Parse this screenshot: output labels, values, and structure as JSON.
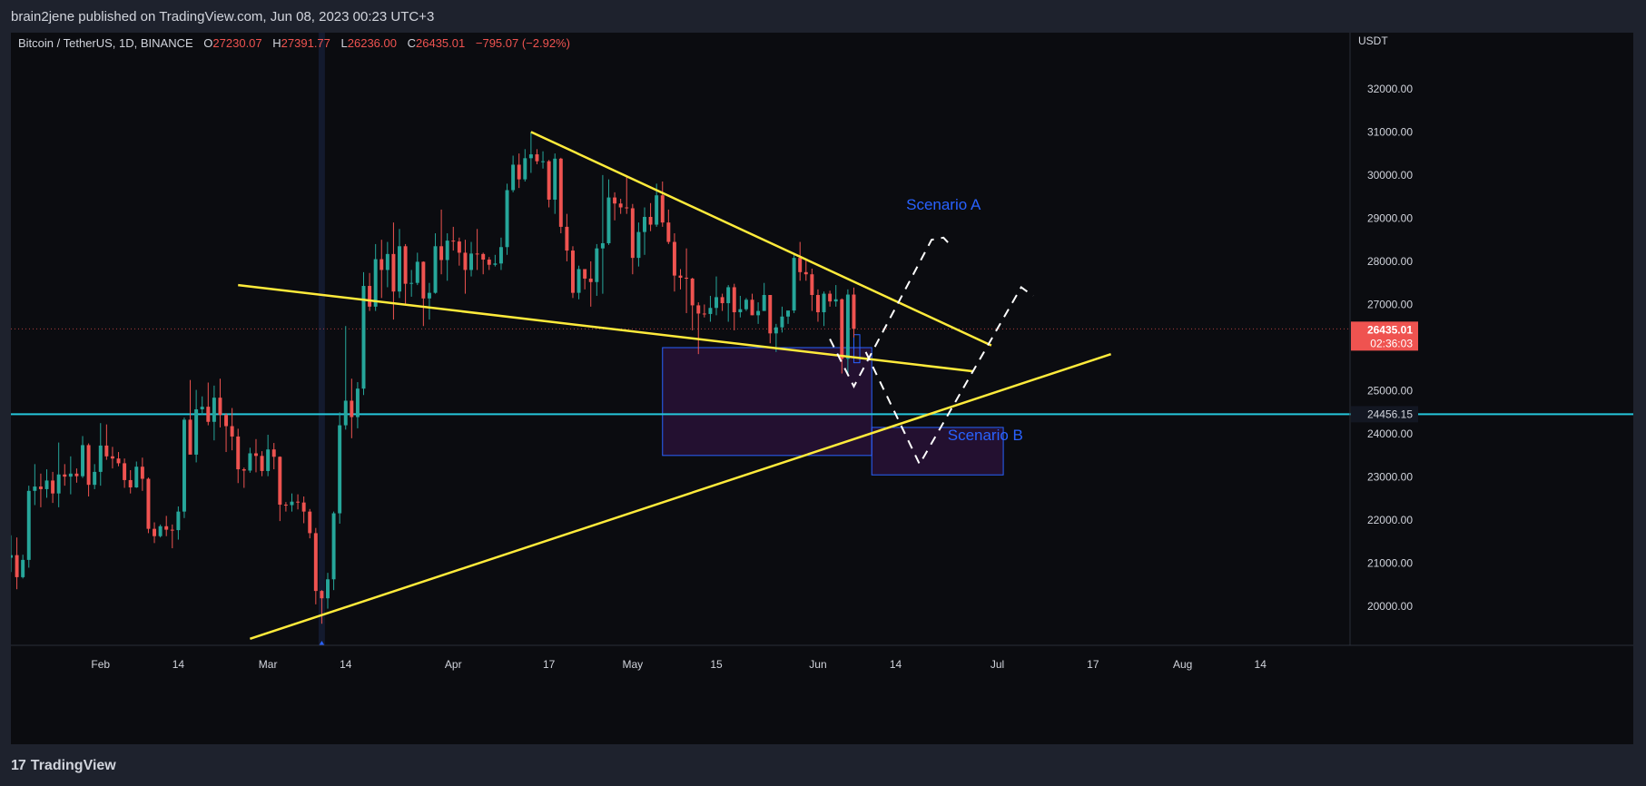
{
  "header": {
    "published_by": "brain2jene published on TradingView.com, Jun 08, 2023 00:23 UTC+3"
  },
  "footer": {
    "logo_mark": "17",
    "logo_text": "TradingView"
  },
  "colors": {
    "up": "#26a69a",
    "down": "#ef5350",
    "trendline": "#ffeb3b",
    "support_line": "#26c6da",
    "price_badge": "#ef5350",
    "scenario_text": "#2962ff"
  },
  "chart_data": {
    "type": "candlestick",
    "symbol_line": {
      "pair": "Bitcoin / TetherUS, 1D, BINANCE",
      "o_label": "O",
      "o": "27230.07",
      "h_label": "H",
      "h": "27391.77",
      "l_label": "L",
      "l": "26236.00",
      "c_label": "C",
      "c": "26435.01",
      "change": "−795.07 (−2.92%)"
    },
    "currency": "USDT",
    "y_ticks": [
      "32000.00",
      "31000.00",
      "30000.00",
      "29000.00",
      "28000.00",
      "27000.00",
      "25000.00",
      "24000.00",
      "23000.00",
      "22000.00",
      "21000.00",
      "20000.00"
    ],
    "y_range": [
      19100,
      33300
    ],
    "x_ticks": [
      {
        "date": "2023-02-01",
        "label": "Feb"
      },
      {
        "date": "2023-02-14",
        "label": "14"
      },
      {
        "date": "2023-03-01",
        "label": "Mar"
      },
      {
        "date": "2023-03-14",
        "label": "14"
      },
      {
        "date": "2023-04-01",
        "label": "Apr"
      },
      {
        "date": "2023-04-17",
        "label": "17"
      },
      {
        "date": "2023-05-01",
        "label": "May"
      },
      {
        "date": "2023-05-15",
        "label": "15"
      },
      {
        "date": "2023-06-01",
        "label": "Jun"
      },
      {
        "date": "2023-06-14",
        "label": "14"
      },
      {
        "date": "2023-07-01",
        "label": "Jul"
      },
      {
        "date": "2023-07-17",
        "label": "17"
      },
      {
        "date": "2023-08-01",
        "label": "Aug"
      },
      {
        "date": "2023-08-14",
        "label": "14"
      }
    ],
    "x_range": [
      "2023-01-17",
      "2023-08-29"
    ],
    "last_price": {
      "value": 26435.01,
      "label": "26435.01",
      "countdown": "02:36:03"
    },
    "support_level": {
      "value": 24456.15,
      "label": "24456.15"
    },
    "highlighted_date": "2023-03-10",
    "candles": [
      [
        "2023-01-17",
        21130,
        21650,
        20800,
        21190
      ],
      [
        "2023-01-18",
        21190,
        21600,
        20400,
        20680
      ],
      [
        "2023-01-19",
        20680,
        21200,
        20650,
        21080
      ],
      [
        "2023-01-20",
        21080,
        22800,
        20900,
        22680
      ],
      [
        "2023-01-21",
        22680,
        23300,
        22350,
        22780
      ],
      [
        "2023-01-22",
        22780,
        23080,
        22300,
        22720
      ],
      [
        "2023-01-23",
        22720,
        23180,
        22520,
        22920
      ],
      [
        "2023-01-24",
        22920,
        23120,
        22400,
        22620
      ],
      [
        "2023-01-25",
        22620,
        23800,
        22300,
        23060
      ],
      [
        "2023-01-26",
        23060,
        23300,
        22800,
        23010
      ],
      [
        "2023-01-27",
        23010,
        23480,
        22600,
        23080
      ],
      [
        "2023-01-28",
        23080,
        23200,
        22870,
        23020
      ],
      [
        "2023-01-29",
        23020,
        23950,
        22980,
        23740
      ],
      [
        "2023-01-30",
        23740,
        23780,
        22550,
        22820
      ],
      [
        "2023-01-31",
        22820,
        23300,
        22720,
        23120
      ],
      [
        "2023-02-01",
        23120,
        24250,
        22800,
        23730
      ],
      [
        "2023-02-02",
        23730,
        24220,
        23400,
        23480
      ],
      [
        "2023-02-03",
        23480,
        23700,
        23200,
        23430
      ],
      [
        "2023-02-04",
        23430,
        23580,
        23250,
        23320
      ],
      [
        "2023-02-05",
        23320,
        23430,
        22750,
        22930
      ],
      [
        "2023-02-06",
        22930,
        23160,
        22620,
        22760
      ],
      [
        "2023-02-07",
        22760,
        23360,
        22750,
        23240
      ],
      [
        "2023-02-08",
        23240,
        23450,
        22680,
        22960
      ],
      [
        "2023-02-09",
        22960,
        22990,
        21700,
        21800
      ],
      [
        "2023-02-10",
        21800,
        21950,
        21470,
        21630
      ],
      [
        "2023-02-11",
        21630,
        21900,
        21600,
        21860
      ],
      [
        "2023-02-12",
        21860,
        22100,
        21630,
        21780
      ],
      [
        "2023-02-13",
        21780,
        21900,
        21350,
        21770
      ],
      [
        "2023-02-14",
        21770,
        22320,
        21550,
        22200
      ],
      [
        "2023-02-15",
        22200,
        24380,
        22050,
        24330
      ],
      [
        "2023-02-16",
        24330,
        25250,
        23550,
        23520
      ],
      [
        "2023-02-17",
        23520,
        25020,
        23340,
        24570
      ],
      [
        "2023-02-18",
        24570,
        24870,
        24450,
        24630
      ],
      [
        "2023-02-19",
        24630,
        25190,
        24200,
        24280
      ],
      [
        "2023-02-20",
        24280,
        25120,
        23850,
        24840
      ],
      [
        "2023-02-21",
        24840,
        25280,
        24150,
        24440
      ],
      [
        "2023-02-22",
        24440,
        24480,
        23580,
        24180
      ],
      [
        "2023-02-23",
        24180,
        24600,
        23620,
        23940
      ],
      [
        "2023-02-24",
        23940,
        24120,
        22860,
        23180
      ],
      [
        "2023-02-25",
        23180,
        23220,
        22750,
        23150
      ],
      [
        "2023-02-26",
        23150,
        23680,
        23100,
        23550
      ],
      [
        "2023-02-27",
        23550,
        23880,
        23110,
        23490
      ],
      [
        "2023-02-28",
        23490,
        23600,
        23020,
        23140
      ],
      [
        "2023-03-01",
        23140,
        23980,
        23020,
        23640
      ],
      [
        "2023-03-02",
        23640,
        23790,
        23180,
        23470
      ],
      [
        "2023-03-03",
        23470,
        23480,
        21980,
        22360
      ],
      [
        "2023-03-04",
        22360,
        22420,
        22200,
        22350
      ],
      [
        "2023-03-05",
        22350,
        22620,
        22200,
        22430
      ],
      [
        "2023-03-06",
        22430,
        22600,
        22250,
        22410
      ],
      [
        "2023-03-07",
        22410,
        22550,
        21930,
        22200
      ],
      [
        "2023-03-08",
        22200,
        22260,
        21580,
        21700
      ],
      [
        "2023-03-09",
        21700,
        21820,
        20050,
        20360
      ],
      [
        "2023-03-10",
        20360,
        20380,
        19600,
        20190
      ],
      [
        "2023-03-11",
        20190,
        20780,
        19950,
        20630
      ],
      [
        "2023-03-12",
        20630,
        22200,
        20380,
        22160
      ],
      [
        "2023-03-13",
        22160,
        24500,
        21920,
        24200
      ],
      [
        "2023-03-14",
        24200,
        26500,
        24100,
        24770
      ],
      [
        "2023-03-15",
        24770,
        25280,
        23900,
        24390
      ],
      [
        "2023-03-16",
        24390,
        25200,
        24130,
        25050
      ],
      [
        "2023-03-17",
        25050,
        27750,
        24900,
        27430
      ],
      [
        "2023-03-18",
        27430,
        27730,
        26850,
        26950
      ],
      [
        "2023-03-19",
        26950,
        28400,
        26850,
        28050
      ],
      [
        "2023-03-20",
        28050,
        28500,
        27150,
        27800
      ],
      [
        "2023-03-21",
        27800,
        28450,
        27400,
        28170
      ],
      [
        "2023-03-22",
        28170,
        28900,
        26650,
        27300
      ],
      [
        "2023-03-23",
        27300,
        28750,
        27150,
        28350
      ],
      [
        "2023-03-24",
        28350,
        28400,
        27000,
        27480
      ],
      [
        "2023-03-25",
        27480,
        27800,
        27180,
        27500
      ],
      [
        "2023-03-26",
        27500,
        28200,
        27450,
        27990
      ],
      [
        "2023-03-27",
        27990,
        28000,
        26500,
        27140
      ],
      [
        "2023-03-28",
        27140,
        27500,
        26650,
        27270
      ],
      [
        "2023-03-29",
        27270,
        28650,
        27250,
        28350
      ],
      [
        "2023-03-30",
        28350,
        29200,
        27700,
        28030
      ],
      [
        "2023-03-31",
        28030,
        28650,
        27550,
        28480
      ],
      [
        "2023-04-01",
        28480,
        28800,
        28250,
        28460
      ],
      [
        "2023-04-02",
        28460,
        28550,
        27900,
        28200
      ],
      [
        "2023-04-03",
        28200,
        28500,
        27250,
        27800
      ],
      [
        "2023-04-04",
        27800,
        28450,
        27650,
        28180
      ],
      [
        "2023-04-05",
        28180,
        28750,
        27800,
        28170
      ],
      [
        "2023-04-06",
        28170,
        28200,
        27700,
        28040
      ],
      [
        "2023-04-07",
        28040,
        28100,
        27800,
        27920
      ],
      [
        "2023-04-08",
        27920,
        28150,
        27880,
        27950
      ],
      [
        "2023-04-09",
        27950,
        28550,
        27800,
        28330
      ],
      [
        "2023-04-10",
        28330,
        29800,
        28150,
        29650
      ],
      [
        "2023-04-11",
        29650,
        30450,
        29600,
        30240
      ],
      [
        "2023-04-12",
        30240,
        30500,
        29700,
        29900
      ],
      [
        "2023-04-13",
        29900,
        30600,
        29850,
        30390
      ],
      [
        "2023-04-14",
        30390,
        31000,
        30050,
        30480
      ],
      [
        "2023-04-15",
        30480,
        30600,
        30250,
        30320
      ],
      [
        "2023-04-16",
        30320,
        30550,
        30150,
        30320
      ],
      [
        "2023-04-17",
        30320,
        30350,
        29250,
        29430
      ],
      [
        "2023-04-18",
        29430,
        30500,
        29100,
        30380
      ],
      [
        "2023-04-19",
        30380,
        30400,
        28650,
        28800
      ],
      [
        "2023-04-20",
        28800,
        29100,
        28000,
        28250
      ],
      [
        "2023-04-21",
        28250,
        28350,
        27150,
        27270
      ],
      [
        "2023-04-22",
        27270,
        27900,
        27120,
        27820
      ],
      [
        "2023-04-23",
        27820,
        27820,
        27350,
        27600
      ],
      [
        "2023-04-24",
        27600,
        28000,
        26950,
        27520
      ],
      [
        "2023-04-25",
        27520,
        28400,
        27200,
        28300
      ],
      [
        "2023-04-26",
        28300,
        30000,
        27250,
        28420
      ],
      [
        "2023-04-27",
        28420,
        29900,
        28380,
        29480
      ],
      [
        "2023-04-28",
        29480,
        29600,
        28950,
        29340
      ],
      [
        "2023-04-29",
        29340,
        29450,
        29100,
        29250
      ],
      [
        "2023-04-30",
        29250,
        29950,
        29100,
        29230
      ],
      [
        "2023-05-01",
        29230,
        29330,
        27700,
        28080
      ],
      [
        "2023-05-02",
        28080,
        28900,
        27880,
        28680
      ],
      [
        "2023-05-03",
        28680,
        29250,
        28150,
        29030
      ],
      [
        "2023-05-04",
        29030,
        29350,
        28700,
        28850
      ],
      [
        "2023-05-05",
        28850,
        29800,
        28800,
        29530
      ],
      [
        "2023-05-06",
        29530,
        29850,
        28800,
        28900
      ],
      [
        "2023-05-07",
        28900,
        29200,
        28400,
        28450
      ],
      [
        "2023-05-08",
        28450,
        28650,
        27300,
        27670
      ],
      [
        "2023-05-09",
        27670,
        27820,
        27350,
        27620
      ],
      [
        "2023-05-10",
        27620,
        28300,
        26800,
        27600
      ],
      [
        "2023-05-11",
        27600,
        27620,
        26400,
        26980
      ],
      [
        "2023-05-12",
        26980,
        27050,
        25850,
        26790
      ],
      [
        "2023-05-13",
        26790,
        27000,
        26700,
        26780
      ],
      [
        "2023-05-14",
        26780,
        27200,
        26600,
        26920
      ],
      [
        "2023-05-15",
        26920,
        27650,
        26750,
        27170
      ],
      [
        "2023-05-16",
        27170,
        27250,
        26850,
        27030
      ],
      [
        "2023-05-17",
        27030,
        27450,
        26600,
        27400
      ],
      [
        "2023-05-18",
        27400,
        27480,
        26400,
        26820
      ],
      [
        "2023-05-19",
        26820,
        27200,
        26700,
        26890
      ],
      [
        "2023-05-20",
        26890,
        27150,
        26850,
        27110
      ],
      [
        "2023-05-21",
        27110,
        27250,
        26750,
        26750
      ],
      [
        "2023-05-22",
        26750,
        27050,
        26550,
        26850
      ],
      [
        "2023-05-23",
        26850,
        27500,
        26850,
        27220
      ],
      [
        "2023-05-24",
        27220,
        27220,
        26100,
        26330
      ],
      [
        "2023-05-25",
        26330,
        26550,
        25900,
        26470
      ],
      [
        "2023-05-26",
        26470,
        26950,
        26350,
        26720
      ],
      [
        "2023-05-27",
        26720,
        26850,
        26550,
        26860
      ],
      [
        "2023-05-28",
        26860,
        28200,
        26800,
        28080
      ],
      [
        "2023-05-29",
        28080,
        28450,
        27550,
        27750
      ],
      [
        "2023-05-30",
        27750,
        28050,
        27550,
        27700
      ],
      [
        "2023-05-31",
        27700,
        27830,
        26850,
        27220
      ],
      [
        "2023-06-01",
        27220,
        27350,
        26600,
        26820
      ],
      [
        "2023-06-02",
        26820,
        27300,
        26500,
        27250
      ],
      [
        "2023-06-03",
        27250,
        27320,
        26950,
        27070
      ],
      [
        "2023-06-04",
        27070,
        27450,
        26950,
        27120
      ],
      [
        "2023-06-05",
        27120,
        27140,
        25400,
        25740
      ],
      [
        "2023-06-06",
        25740,
        27350,
        25400,
        27230
      ],
      [
        "2023-06-07",
        27230,
        27391.77,
        26236,
        26435.01
      ]
    ],
    "trendlines": [
      {
        "name": "descending-resistance",
        "from": [
          "2023-04-14",
          31000
        ],
        "to": [
          "2023-06-30",
          26050
        ]
      },
      {
        "name": "descending-support",
        "from": [
          "2023-02-24",
          27450
        ],
        "to": [
          "2023-06-27",
          25450
        ]
      },
      {
        "name": "ascending-support",
        "from": [
          "2023-02-26",
          19250
        ],
        "to": [
          "2023-07-20",
          25850
        ]
      }
    ],
    "zones": [
      {
        "name": "demand-zone-upper",
        "x0": "2023-05-06",
        "x1": "2023-06-10",
        "y0": 23500,
        "y1": 26000
      },
      {
        "name": "demand-zone-lower",
        "x0": "2023-06-10",
        "x1": "2023-07-02",
        "y0": 23050,
        "y1": 24150
      },
      {
        "name": "small-box",
        "x0": "2023-06-07",
        "x1": "2023-06-08",
        "y0": 25650,
        "y1": 26300
      }
    ],
    "projections": [
      {
        "name": "scenario-a-path",
        "points": [
          [
            "2023-06-03",
            26200
          ],
          [
            "2023-06-07",
            25100
          ],
          [
            "2023-06-20",
            28500
          ],
          [
            "2023-06-22",
            28550
          ],
          [
            "2023-06-23",
            28400
          ]
        ]
      },
      {
        "name": "scenario-b-path",
        "points": [
          [
            "2023-06-09",
            25900
          ],
          [
            "2023-06-18",
            23300
          ],
          [
            "2023-07-05",
            27400
          ],
          [
            "2023-07-07",
            27200
          ]
        ]
      }
    ],
    "annotations": [
      {
        "text": "Scenario A",
        "date": "2023-06-22",
        "price": 29200
      },
      {
        "text": "Scenario B",
        "date": "2023-06-29",
        "price": 23850
      }
    ]
  }
}
